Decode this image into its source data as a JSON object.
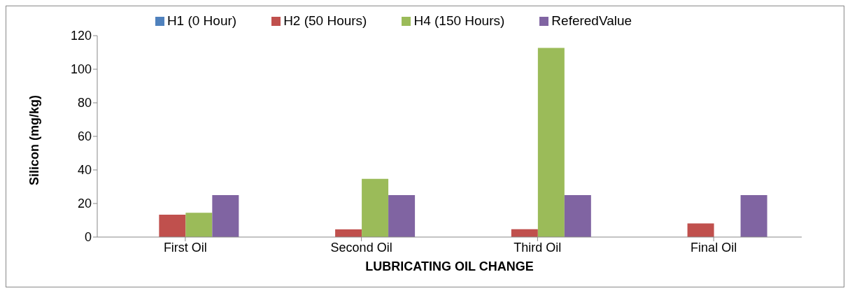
{
  "chart_data": {
    "type": "bar",
    "xlabel": "LUBRICATING OIL CHANGE",
    "ylabel": "Silicon (mg/kg)",
    "categories": [
      "First Oil",
      "Second Oil",
      "Third Oil",
      "Final Oil"
    ],
    "series": [
      {
        "name": "H1 (0 Hour)",
        "color": "#4f81bd",
        "values": [
          0,
          0,
          0,
          0
        ]
      },
      {
        "name": "H2 (50 Hours)",
        "color": "#c0504d",
        "values": [
          13.3,
          4.6,
          4.7,
          8.1
        ]
      },
      {
        "name": "H4 (150 Hours)",
        "color": "#9bbb59",
        "values": [
          14.5,
          34.7,
          112.7,
          0
        ]
      },
      {
        "name": "ReferedValue",
        "color": "#8064a2",
        "values": [
          25,
          25,
          25,
          25
        ]
      }
    ],
    "ylim": [
      0,
      120
    ],
    "yticks": [
      0,
      20,
      40,
      60,
      80,
      100,
      120
    ],
    "grid": false,
    "legend": "top"
  }
}
